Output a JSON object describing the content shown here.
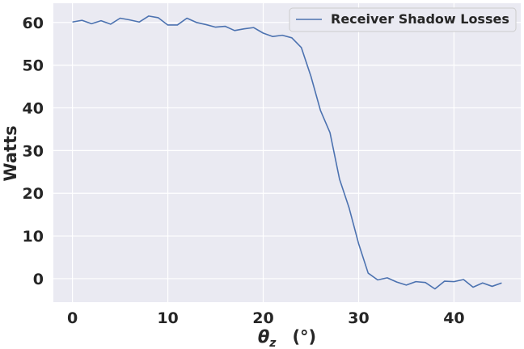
{
  "chart_data": {
    "type": "line",
    "xlabel_symbol": "θ",
    "xlabel_sub": "z",
    "xlabel_unit": "(°)",
    "ylabel": "Watts",
    "xlim": [
      -2,
      47
    ],
    "ylim": [
      -5.5,
      64.5
    ],
    "xticks": [
      0,
      10,
      20,
      30,
      40
    ],
    "yticks": [
      0,
      10,
      20,
      30,
      40,
      50,
      60
    ],
    "grid": true,
    "legend_position": "top-right",
    "background": "#eaeaf2",
    "series": [
      {
        "name": "Receiver Shadow Losses",
        "color": "#4c72b0",
        "x": [
          0,
          1,
          2,
          3,
          4,
          5,
          6,
          7,
          8,
          9,
          10,
          11,
          12,
          13,
          14,
          15,
          16,
          17,
          18,
          19,
          20,
          21,
          22,
          23,
          24,
          25,
          26,
          27,
          28,
          29,
          30,
          31,
          32,
          33,
          34,
          35,
          36,
          37,
          38,
          39,
          40,
          41,
          42,
          43,
          44,
          45
        ],
        "y": [
          60.1,
          60.5,
          59.7,
          60.4,
          59.6,
          61.0,
          60.6,
          60.1,
          61.5,
          61.1,
          59.4,
          59.4,
          61.0,
          60.0,
          59.5,
          58.9,
          59.1,
          58.1,
          58.5,
          58.8,
          57.5,
          56.7,
          57.0,
          56.4,
          54.1,
          47.4,
          39.4,
          34.2,
          23.3,
          16.6,
          8.2,
          1.3,
          -0.3,
          0.2,
          -0.8,
          -1.5,
          -0.7,
          -0.9,
          -2.4,
          -0.6,
          -0.7,
          -0.2,
          -2.0,
          -1.0,
          -1.8,
          -1.0
        ]
      }
    ]
  }
}
